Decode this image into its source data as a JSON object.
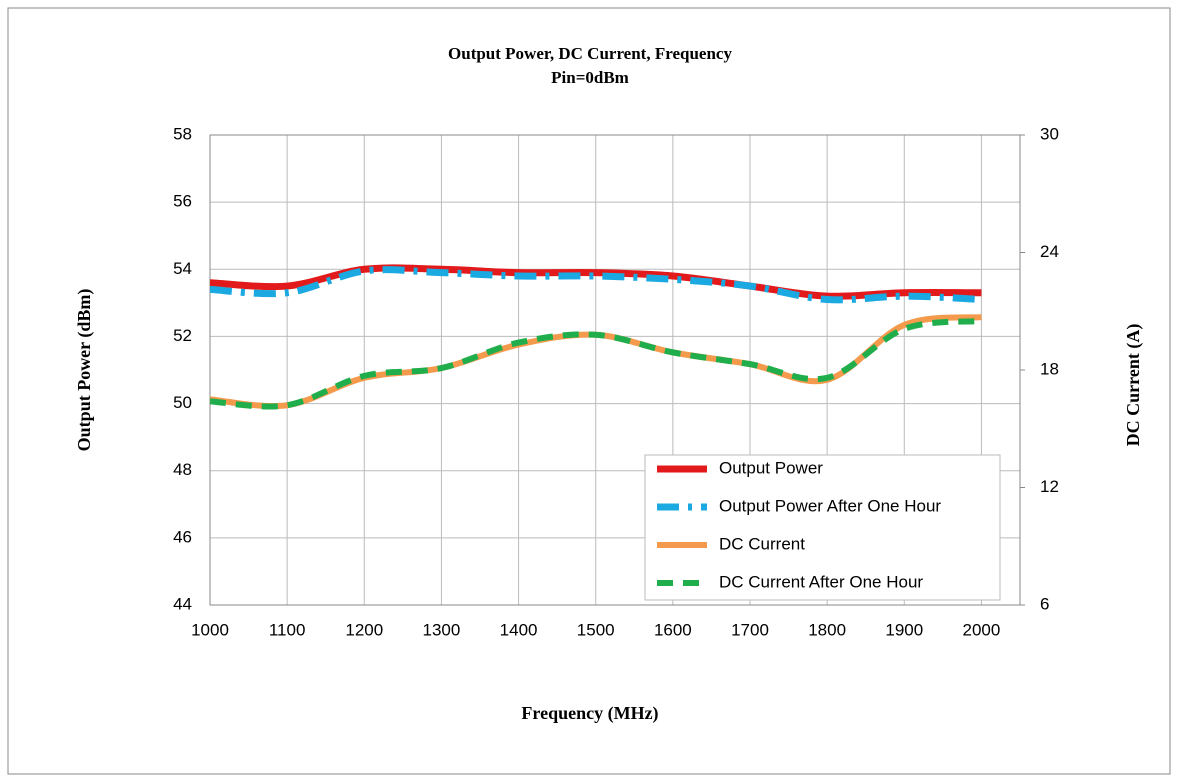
{
  "chart_data": {
    "type": "line",
    "title": "Output Power, DC Current,  Frequency",
    "subtitle": "Pin=0dBm",
    "x_label": "Frequency (MHz)",
    "y_label": "Output Power (dBm)",
    "y2_label": "DC Current (A)",
    "x": [
      1000,
      1100,
      1200,
      1300,
      1400,
      1500,
      1600,
      1700,
      1800,
      1900,
      2000
    ],
    "xlim": [
      1000,
      2050
    ],
    "xticks": [
      1000,
      1100,
      1200,
      1300,
      1400,
      1500,
      1600,
      1700,
      1800,
      1900,
      2000
    ],
    "ylim": [
      44,
      58
    ],
    "yticks": [
      44,
      46,
      48,
      50,
      52,
      54,
      56,
      58
    ],
    "y2lim": [
      6,
      30
    ],
    "y2ticks": [
      6,
      12,
      18,
      24,
      30
    ],
    "grid": true,
    "legend": "lower right",
    "series": [
      {
        "name": "Output Power",
        "color": "#e31a1c",
        "values": [
          53.6,
          53.5,
          54.0,
          54.0,
          53.9,
          53.9,
          53.8,
          53.5,
          53.2,
          53.3,
          53.3
        ]
      },
      {
        "name": "Output Power After One Hour",
        "color": "#1ba9e1",
        "values": [
          53.4,
          53.3,
          53.95,
          53.9,
          53.8,
          53.8,
          53.7,
          53.5,
          53.1,
          53.2,
          53.1
        ]
      },
      {
        "name": "DC Current",
        "color": "#f39a4c",
        "axis": "y2",
        "values": [
          16.5,
          16.2,
          17.6,
          18.1,
          19.3,
          19.8,
          18.9,
          18.3,
          17.5,
          20.3,
          20.7
        ]
      },
      {
        "name": "DC Current After One Hour",
        "color": "#1fae4b",
        "axis": "y2",
        "values": [
          16.4,
          16.2,
          17.7,
          18.1,
          19.4,
          19.8,
          18.9,
          18.3,
          17.6,
          20.1,
          20.5
        ]
      }
    ]
  }
}
